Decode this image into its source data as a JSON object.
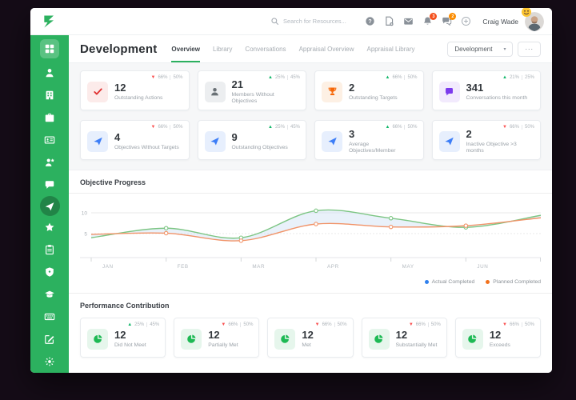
{
  "colors": {
    "accent_green": "#2cb15f",
    "trend_down_red": "#fa5252",
    "trend_up_green": "#12b76a"
  },
  "topbar": {
    "search_placeholder": "Search for Resources...",
    "user_name": "Craig Wade",
    "notification_count": "3",
    "message_count": "2"
  },
  "sidebar": {
    "items": [
      "dashboard",
      "members",
      "organization",
      "jobs",
      "id-card",
      "talent",
      "feedback",
      "objectives",
      "favorites",
      "reports",
      "security",
      "learning",
      "keyboard",
      "compose",
      "settings"
    ],
    "active_item": "objectives"
  },
  "page_header": {
    "title": "Development",
    "tabs": [
      {
        "label": "Overview",
        "active": true
      },
      {
        "label": "Library",
        "active": false
      },
      {
        "label": "Conversations",
        "active": false
      },
      {
        "label": "Appraisal Overview",
        "active": false
      },
      {
        "label": "Appraisal Library",
        "active": false
      }
    ],
    "filter_value": "Development",
    "caret": "▾",
    "more_label": "..."
  },
  "stat_rows": [
    [
      {
        "icon": "check",
        "icon_color": "#e03131",
        "icon_bg": "#fcebea",
        "value": "12",
        "label": "Outstanding Actions",
        "trend": "down",
        "pct_primary": "66%",
        "pct_secondary": "50%"
      },
      {
        "icon": "user",
        "icon_color": "#697075",
        "icon_bg": "#eceef0",
        "value": "21",
        "label": "Members Without Objectives",
        "trend": "up",
        "pct_primary": "25%",
        "pct_secondary": "45%"
      },
      {
        "icon": "trophy",
        "icon_color": "#f76707",
        "icon_bg": "#fdf0e4",
        "value": "2",
        "label": "Outstanding Targets",
        "trend": "up",
        "pct_primary": "66%",
        "pct_secondary": "50%"
      },
      {
        "icon": "chat",
        "icon_color": "#7c3aed",
        "icon_bg": "#f2eafd",
        "value": "341",
        "label": "Conversations this month",
        "trend": "up",
        "pct_primary": "21%",
        "pct_secondary": "25%"
      }
    ],
    [
      {
        "icon": "plane",
        "icon_color": "#3d7ef7",
        "icon_bg": "#e7effd",
        "value": "4",
        "label": "Objectives Without Targets",
        "trend": "down",
        "pct_primary": "66%",
        "pct_secondary": "50%"
      },
      {
        "icon": "plane",
        "icon_color": "#3d7ef7",
        "icon_bg": "#e7effd",
        "value": "9",
        "label": "Outstanding Objectives",
        "trend": "up",
        "pct_primary": "25%",
        "pct_secondary": "45%"
      },
      {
        "icon": "plane",
        "icon_color": "#3d7ef7",
        "icon_bg": "#e7effd",
        "value": "3",
        "label": "Average Objectives/Member",
        "trend": "up",
        "pct_primary": "66%",
        "pct_secondary": "50%"
      },
      {
        "icon": "plane",
        "icon_color": "#3d7ef7",
        "icon_bg": "#e7effd",
        "value": "2",
        "label": "Inactive Objective >3 months",
        "trend": "down",
        "pct_primary": "66%",
        "pct_secondary": "50%"
      }
    ]
  ],
  "sections": {
    "objective_progress_title": "Objective Progress",
    "performance_title": "Performance Contribution"
  },
  "performance_cards": [
    {
      "icon": "pie",
      "icon_color": "#1db954",
      "icon_bg": "#e6f6ec",
      "value": "12",
      "label": "Did Not Meet",
      "trend": "up",
      "pct_primary": "25%",
      "pct_secondary": "45%"
    },
    {
      "icon": "pie",
      "icon_color": "#1db954",
      "icon_bg": "#e6f6ec",
      "value": "12",
      "label": "Partially Met",
      "trend": "down",
      "pct_primary": "66%",
      "pct_secondary": "50%"
    },
    {
      "icon": "pie",
      "icon_color": "#1db954",
      "icon_bg": "#e6f6ec",
      "value": "12",
      "label": "Met",
      "trend": "down",
      "pct_primary": "66%",
      "pct_secondary": "50%"
    },
    {
      "icon": "pie",
      "icon_color": "#1db954",
      "icon_bg": "#e6f6ec",
      "value": "12",
      "label": "Substantially Met",
      "trend": "down",
      "pct_primary": "66%",
      "pct_secondary": "50%"
    },
    {
      "icon": "pie",
      "icon_color": "#1db954",
      "icon_bg": "#e6f6ec",
      "value": "12",
      "label": "Exceeds",
      "trend": "down",
      "pct_primary": "66%",
      "pct_secondary": "50%"
    }
  ],
  "chart_data": {
    "type": "line",
    "title": "Objective Progress",
    "x_labels": [
      "JAN",
      "FEB",
      "MAR",
      "APR",
      "MAY",
      "JUN"
    ],
    "x": [
      0,
      1,
      2,
      3,
      4,
      5,
      6
    ],
    "series": [
      {
        "name": "Actual Completed",
        "line_color": "#7cc583",
        "legend_dot": "#2f80ed",
        "values": [
          4.0,
          6.3,
          4.0,
          10.5,
          8.7,
          6.5,
          9.4
        ],
        "marker_indices": [
          1,
          2,
          3,
          4,
          5
        ]
      },
      {
        "name": "Planned Completed",
        "line_color": "#f19368",
        "legend_dot": "#f2711c",
        "values": [
          4.8,
          5.1,
          3.3,
          7.3,
          6.6,
          6.9,
          8.8
        ],
        "marker_indices": [
          1,
          2,
          3,
          4,
          5
        ]
      }
    ],
    "yticks": [
      5,
      10
    ],
    "ylim": [
      0,
      13
    ],
    "grid": "horizontal",
    "fill_between_color": "#cfe0f5",
    "legend_position": "bottom-right"
  }
}
